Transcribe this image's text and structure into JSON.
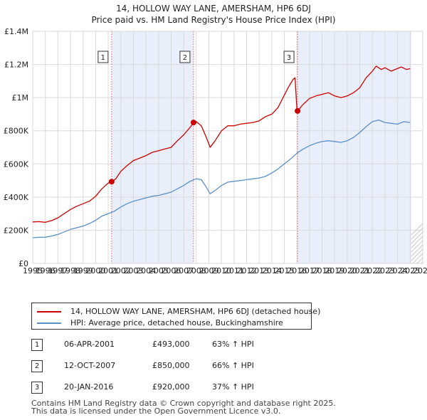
{
  "chart_data": {
    "type": "line",
    "title": "14, HOLLOW WAY LANE, AMERSHAM, HP6 6DJ",
    "subtitle": "Price paid vs. HM Land Registry's House Price Index (HPI)",
    "xlabel": "",
    "ylabel": "",
    "xlim": [
      1995,
      2026
    ],
    "ylim": [
      0,
      1400000
    ],
    "x_ticks": [
      1995,
      1996,
      1997,
      1998,
      1999,
      2000,
      2001,
      2002,
      2003,
      2004,
      2005,
      2006,
      2007,
      2008,
      2009,
      2010,
      2011,
      2012,
      2013,
      2014,
      2015,
      2016,
      2017,
      2018,
      2019,
      2020,
      2021,
      2022,
      2023,
      2024,
      2025,
      2026
    ],
    "x_tick_labels": [
      "1995",
      "1996",
      "1997",
      "1998",
      "1999",
      "2000",
      "2001",
      "2002",
      "2003",
      "2004",
      "2005",
      "2006",
      "2007",
      "2008",
      "2009",
      "2010",
      "2011",
      "2012",
      "2013",
      "2014",
      "2015",
      "2016",
      "2017",
      "2018",
      "2019",
      "2020",
      "2021",
      "2022",
      "2023",
      "2024",
      "2025",
      "2026"
    ],
    "y_ticks": [
      0,
      200000,
      400000,
      600000,
      800000,
      1000000,
      1200000,
      1400000
    ],
    "y_tick_labels": [
      "£0",
      "£200K",
      "£400K",
      "£600K",
      "£800K",
      "£1M",
      "£1.2M",
      "£1.4M"
    ],
    "grid": true,
    "data_end": 2025.1,
    "series": [
      {
        "name": "14, HOLLOW WAY LANE, AMERSHAM, HP6 6DJ (detached house)",
        "color": "#cc0000",
        "points": [
          [
            1995.0,
            250000
          ],
          [
            1995.5,
            252000
          ],
          [
            1996.0,
            248000
          ],
          [
            1996.5,
            258000
          ],
          [
            1997.0,
            275000
          ],
          [
            1997.5,
            300000
          ],
          [
            1998.0,
            325000
          ],
          [
            1998.5,
            345000
          ],
          [
            1999.0,
            360000
          ],
          [
            1999.5,
            375000
          ],
          [
            2000.0,
            405000
          ],
          [
            2000.5,
            450000
          ],
          [
            2001.0,
            485000
          ],
          [
            2001.27,
            493000
          ],
          [
            2001.6,
            510000
          ],
          [
            2002.0,
            555000
          ],
          [
            2002.5,
            590000
          ],
          [
            2003.0,
            620000
          ],
          [
            2003.5,
            635000
          ],
          [
            2004.0,
            650000
          ],
          [
            2004.5,
            670000
          ],
          [
            2005.0,
            680000
          ],
          [
            2005.5,
            690000
          ],
          [
            2006.0,
            700000
          ],
          [
            2006.5,
            740000
          ],
          [
            2007.0,
            775000
          ],
          [
            2007.5,
            820000
          ],
          [
            2007.78,
            850000
          ],
          [
            2008.0,
            855000
          ],
          [
            2008.4,
            830000
          ],
          [
            2008.8,
            760000
          ],
          [
            2009.1,
            700000
          ],
          [
            2009.5,
            740000
          ],
          [
            2010.0,
            800000
          ],
          [
            2010.5,
            830000
          ],
          [
            2011.0,
            830000
          ],
          [
            2011.5,
            840000
          ],
          [
            2012.0,
            845000
          ],
          [
            2012.5,
            850000
          ],
          [
            2013.0,
            860000
          ],
          [
            2013.5,
            885000
          ],
          [
            2014.0,
            900000
          ],
          [
            2014.5,
            940000
          ],
          [
            2014.9,
            1000000
          ],
          [
            2015.3,
            1060000
          ],
          [
            2015.7,
            1110000
          ],
          [
            2015.85,
            1120000
          ],
          [
            2016.0,
            930000
          ],
          [
            2016.05,
            920000
          ],
          [
            2016.5,
            960000
          ],
          [
            2017.0,
            995000
          ],
          [
            2017.5,
            1010000
          ],
          [
            2018.0,
            1020000
          ],
          [
            2018.5,
            1030000
          ],
          [
            2019.0,
            1010000
          ],
          [
            2019.5,
            1000000
          ],
          [
            2020.0,
            1010000
          ],
          [
            2020.5,
            1030000
          ],
          [
            2021.0,
            1060000
          ],
          [
            2021.5,
            1120000
          ],
          [
            2022.0,
            1160000
          ],
          [
            2022.3,
            1190000
          ],
          [
            2022.7,
            1170000
          ],
          [
            2023.0,
            1180000
          ],
          [
            2023.5,
            1160000
          ],
          [
            2023.8,
            1170000
          ],
          [
            2024.3,
            1185000
          ],
          [
            2024.7,
            1170000
          ],
          [
            2025.0,
            1175000
          ]
        ]
      },
      {
        "name": "HPI: Average price, detached house, Buckinghamshire",
        "color": "#5b8fc7",
        "points": [
          [
            1995.0,
            155000
          ],
          [
            1995.5,
            157000
          ],
          [
            1996.0,
            158000
          ],
          [
            1996.5,
            165000
          ],
          [
            1997.0,
            175000
          ],
          [
            1997.5,
            190000
          ],
          [
            1998.0,
            205000
          ],
          [
            1998.5,
            215000
          ],
          [
            1999.0,
            225000
          ],
          [
            1999.5,
            240000
          ],
          [
            2000.0,
            260000
          ],
          [
            2000.5,
            285000
          ],
          [
            2001.0,
            300000
          ],
          [
            2001.5,
            315000
          ],
          [
            2002.0,
            340000
          ],
          [
            2002.5,
            360000
          ],
          [
            2003.0,
            375000
          ],
          [
            2003.5,
            385000
          ],
          [
            2004.0,
            395000
          ],
          [
            2004.5,
            405000
          ],
          [
            2005.0,
            410000
          ],
          [
            2005.5,
            420000
          ],
          [
            2006.0,
            430000
          ],
          [
            2006.5,
            450000
          ],
          [
            2007.0,
            470000
          ],
          [
            2007.5,
            495000
          ],
          [
            2008.0,
            510000
          ],
          [
            2008.4,
            505000
          ],
          [
            2008.8,
            460000
          ],
          [
            2009.1,
            420000
          ],
          [
            2009.5,
            440000
          ],
          [
            2010.0,
            470000
          ],
          [
            2010.5,
            490000
          ],
          [
            2011.0,
            495000
          ],
          [
            2011.5,
            500000
          ],
          [
            2012.0,
            505000
          ],
          [
            2012.5,
            510000
          ],
          [
            2013.0,
            515000
          ],
          [
            2013.5,
            525000
          ],
          [
            2014.0,
            545000
          ],
          [
            2014.5,
            570000
          ],
          [
            2015.0,
            600000
          ],
          [
            2015.5,
            630000
          ],
          [
            2016.0,
            665000
          ],
          [
            2016.5,
            690000
          ],
          [
            2017.0,
            710000
          ],
          [
            2017.5,
            725000
          ],
          [
            2018.0,
            735000
          ],
          [
            2018.5,
            740000
          ],
          [
            2019.0,
            735000
          ],
          [
            2019.5,
            730000
          ],
          [
            2020.0,
            740000
          ],
          [
            2020.5,
            760000
          ],
          [
            2021.0,
            790000
          ],
          [
            2021.5,
            825000
          ],
          [
            2022.0,
            855000
          ],
          [
            2022.5,
            865000
          ],
          [
            2023.0,
            850000
          ],
          [
            2023.5,
            845000
          ],
          [
            2024.0,
            840000
          ],
          [
            2024.5,
            855000
          ],
          [
            2025.0,
            850000
          ]
        ]
      }
    ],
    "sales": [
      {
        "id": "1",
        "x": 2001.27,
        "value": 493000,
        "date": "06-APR-2001",
        "price": "£493,000",
        "hpi": "63% ↑ HPI"
      },
      {
        "id": "2",
        "x": 2007.78,
        "value": 850000,
        "date": "12-OCT-2007",
        "price": "£850,000",
        "hpi": "66% ↑ HPI"
      },
      {
        "id": "3",
        "x": 2016.05,
        "value": 920000,
        "date": "20-JAN-2016",
        "price": "£920,000",
        "hpi": "37% ↑ HPI"
      }
    ]
  },
  "legend": {
    "red_label": "14, HOLLOW WAY LANE, AMERSHAM, HP6 6DJ (detached house)",
    "blue_label": "HPI: Average price, detached house, Buckinghamshire"
  },
  "colors": {
    "price_line": "#cc0000",
    "hpi_line": "#5b8fc7",
    "shade": "#e8eefa",
    "grid": "#d9d9d9"
  },
  "footer": {
    "line1": "Contains HM Land Registry data © Crown copyright and database right 2025.",
    "line2": "This data is licensed under the Open Government Licence v3.0."
  }
}
